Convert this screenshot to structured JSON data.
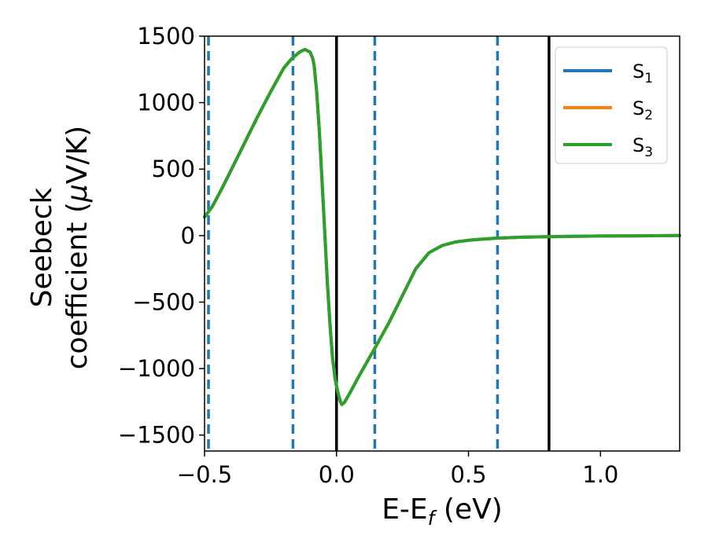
{
  "chart_data": {
    "type": "line",
    "xlabel": {
      "main": "E-E",
      "sub": "f",
      "tail": " (eV)"
    },
    "ylabel": {
      "line1": "Seebeck",
      "line2_a": "coefficient  (",
      "line2_mu": "μ",
      "line2_b": "V/K)"
    },
    "xlim": [
      -0.5,
      1.3
    ],
    "ylim": [
      -1620,
      1500
    ],
    "x_ticks": [
      {
        "value": -0.5,
        "label": "−0.5"
      },
      {
        "value": 0.0,
        "label": "0.0"
      },
      {
        "value": 0.5,
        "label": "0.5"
      },
      {
        "value": 1.0,
        "label": "1.0"
      }
    ],
    "y_ticks": [
      {
        "value": 1500,
        "label": "1500"
      },
      {
        "value": 1000,
        "label": "1000"
      },
      {
        "value": 500,
        "label": "500"
      },
      {
        "value": 0,
        "label": "0"
      },
      {
        "value": -500,
        "label": "−500"
      },
      {
        "value": -1000,
        "label": "−1000"
      },
      {
        "value": -1500,
        "label": "−1500"
      }
    ],
    "grid": false,
    "legend_position": "top-right",
    "x": [
      -0.5,
      -0.47,
      -0.43,
      -0.4,
      -0.35,
      -0.3,
      -0.25,
      -0.2,
      -0.17,
      -0.14,
      -0.12,
      -0.1,
      -0.09,
      -0.085,
      -0.075,
      -0.065,
      -0.055,
      -0.045,
      -0.035,
      -0.025,
      -0.015,
      -0.005,
      0.005,
      0.015,
      0.02,
      0.03,
      0.05,
      0.08,
      0.1,
      0.15,
      0.2,
      0.25,
      0.3,
      0.35,
      0.4,
      0.45,
      0.5,
      0.55,
      0.6,
      0.7,
      0.8,
      0.9,
      1.0,
      1.1,
      1.2,
      1.3
    ],
    "series": [
      {
        "name": "S",
        "sub": "1",
        "color": "#1f77b4",
        "values": [
          140,
          220,
          370,
          490,
          690,
          890,
          1080,
          1260,
          1330,
          1380,
          1400,
          1380,
          1330,
          1280,
          1080,
          780,
          420,
          40,
          -340,
          -660,
          -920,
          -1080,
          -1180,
          -1250,
          -1270,
          -1255,
          -1185,
          -1075,
          -1005,
          -830,
          -650,
          -450,
          -250,
          -130,
          -75,
          -48,
          -35,
          -27,
          -20,
          -12,
          -8,
          -5,
          -3,
          -2,
          -1,
          0
        ]
      },
      {
        "name": "S",
        "sub": "2",
        "color": "#ff7f0e",
        "values": [
          140,
          220,
          370,
          490,
          690,
          890,
          1080,
          1260,
          1330,
          1380,
          1400,
          1380,
          1330,
          1280,
          1080,
          780,
          420,
          40,
          -340,
          -660,
          -920,
          -1080,
          -1180,
          -1250,
          -1270,
          -1255,
          -1185,
          -1075,
          -1005,
          -830,
          -650,
          -450,
          -250,
          -130,
          -75,
          -48,
          -35,
          -27,
          -20,
          -12,
          -8,
          -5,
          -3,
          -2,
          -1,
          0
        ]
      },
      {
        "name": "S",
        "sub": "3",
        "color": "#2ca02c",
        "values": [
          140,
          220,
          370,
          490,
          690,
          890,
          1080,
          1260,
          1330,
          1380,
          1400,
          1380,
          1330,
          1280,
          1080,
          780,
          420,
          40,
          -340,
          -660,
          -920,
          -1080,
          -1180,
          -1250,
          -1270,
          -1255,
          -1185,
          -1075,
          -1005,
          -830,
          -650,
          -450,
          -250,
          -130,
          -75,
          -48,
          -35,
          -27,
          -20,
          -12,
          -8,
          -5,
          -3,
          -2,
          -1,
          0
        ]
      }
    ],
    "vlines": [
      {
        "x": -0.485,
        "style": "dashed",
        "color": "#1f77b4"
      },
      {
        "x": -0.165,
        "style": "dashed",
        "color": "#1f77b4"
      },
      {
        "x": 0.0,
        "style": "solid",
        "color": "#000000"
      },
      {
        "x": 0.145,
        "style": "dashed",
        "color": "#1f77b4"
      },
      {
        "x": 0.61,
        "style": "dashed",
        "color": "#1f77b4"
      },
      {
        "x": 0.805,
        "style": "solid",
        "color": "#000000"
      }
    ]
  }
}
